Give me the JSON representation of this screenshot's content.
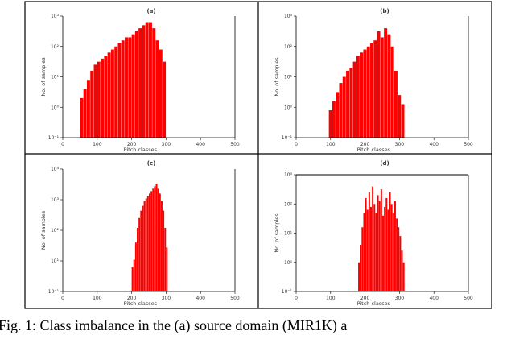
{
  "caption": "Fig. 1: Class imbalance in the (a) source domain (MIR1K) a",
  "colors": {
    "bar": "#ff0000",
    "axis": "#000000",
    "text": "#333333"
  },
  "chart_data": [
    {
      "type": "bar",
      "title": "(a)",
      "xlabel": "Pitch classes",
      "ylabel": "No. of samples",
      "xlim": [
        0,
        500
      ],
      "xticks": [
        0,
        100,
        200,
        300,
        400,
        500
      ],
      "xtick_labels": [
        "0",
        "100",
        "200",
        "300",
        "400",
        "500"
      ],
      "yscale": "log",
      "ylim_exp": [
        -1,
        3
      ],
      "ytick_labels": [
        "10⁻¹",
        "10⁰",
        "10¹",
        "10²",
        "10³"
      ],
      "grid": false,
      "range": [
        50,
        295
      ],
      "bars": [
        {
          "x": 50,
          "v": 0.3
        },
        {
          "x": 60,
          "v": 0.6
        },
        {
          "x": 70,
          "v": 0.9
        },
        {
          "x": 80,
          "v": 1.2
        },
        {
          "x": 90,
          "v": 1.4
        },
        {
          "x": 100,
          "v": 1.5
        },
        {
          "x": 110,
          "v": 1.6
        },
        {
          "x": 120,
          "v": 1.7
        },
        {
          "x": 130,
          "v": 1.8
        },
        {
          "x": 140,
          "v": 1.9
        },
        {
          "x": 150,
          "v": 2.0
        },
        {
          "x": 160,
          "v": 2.1
        },
        {
          "x": 170,
          "v": 2.2
        },
        {
          "x": 180,
          "v": 2.3
        },
        {
          "x": 190,
          "v": 2.3
        },
        {
          "x": 200,
          "v": 2.4
        },
        {
          "x": 210,
          "v": 2.5
        },
        {
          "x": 220,
          "v": 2.6
        },
        {
          "x": 230,
          "v": 2.7
        },
        {
          "x": 240,
          "v": 2.8
        },
        {
          "x": 250,
          "v": 2.8
        },
        {
          "x": 260,
          "v": 2.6
        },
        {
          "x": 270,
          "v": 2.2
        },
        {
          "x": 280,
          "v": 1.9
        },
        {
          "x": 290,
          "v": 1.5
        }
      ]
    },
    {
      "type": "bar",
      "title": "(b)",
      "xlabel": "Pitch classes",
      "ylabel": "No. of samples",
      "xlim": [
        0,
        500
      ],
      "xticks": [
        0,
        100,
        200,
        300,
        400,
        500
      ],
      "xtick_labels": [
        "0",
        "100",
        "200",
        "300",
        "400",
        "500"
      ],
      "yscale": "log",
      "ylim_exp": [
        -1,
        3
      ],
      "ytick_labels": [
        "10⁻¹",
        "10⁰",
        "10¹",
        "10²",
        "10³"
      ],
      "grid": false,
      "range": [
        95,
        305
      ],
      "bars": [
        {
          "x": 95,
          "v": -0.1
        },
        {
          "x": 105,
          "v": 0.2
        },
        {
          "x": 115,
          "v": 0.5
        },
        {
          "x": 125,
          "v": 0.8
        },
        {
          "x": 135,
          "v": 1.0
        },
        {
          "x": 145,
          "v": 1.2
        },
        {
          "x": 155,
          "v": 1.3
        },
        {
          "x": 165,
          "v": 1.5
        },
        {
          "x": 175,
          "v": 1.7
        },
        {
          "x": 185,
          "v": 1.8
        },
        {
          "x": 195,
          "v": 1.9
        },
        {
          "x": 205,
          "v": 2.0
        },
        {
          "x": 215,
          "v": 2.1
        },
        {
          "x": 225,
          "v": 2.2
        },
        {
          "x": 235,
          "v": 2.5
        },
        {
          "x": 245,
          "v": 2.3
        },
        {
          "x": 255,
          "v": 2.6
        },
        {
          "x": 265,
          "v": 2.4
        },
        {
          "x": 275,
          "v": 2.0
        },
        {
          "x": 285,
          "v": 1.2
        },
        {
          "x": 295,
          "v": 0.4
        },
        {
          "x": 305,
          "v": 0.1
        }
      ]
    },
    {
      "type": "bar",
      "title": "(c)",
      "xlabel": "Pitch classes",
      "ylabel": "No. of samples",
      "xlim": [
        0,
        500
      ],
      "xticks": [
        0,
        100,
        200,
        300,
        400,
        500
      ],
      "xtick_labels": [
        "0",
        "100",
        "200",
        "300",
        "400",
        "500"
      ],
      "yscale": "log",
      "ylim_exp": [
        -1,
        4
      ],
      "ytick_labels": [
        "10⁻¹",
        "10¹",
        "10²",
        "10³",
        "10⁴"
      ],
      "grid": false,
      "range": [
        200,
        300
      ],
      "bars": [
        {
          "x": 200,
          "v": 0.0
        },
        {
          "x": 205,
          "v": 0.3
        },
        {
          "x": 210,
          "v": 1.0
        },
        {
          "x": 215,
          "v": 1.6
        },
        {
          "x": 220,
          "v": 2.0
        },
        {
          "x": 225,
          "v": 2.3
        },
        {
          "x": 230,
          "v": 2.5
        },
        {
          "x": 235,
          "v": 2.7
        },
        {
          "x": 240,
          "v": 2.8
        },
        {
          "x": 245,
          "v": 2.9
        },
        {
          "x": 250,
          "v": 3.0
        },
        {
          "x": 255,
          "v": 3.1
        },
        {
          "x": 260,
          "v": 3.2
        },
        {
          "x": 265,
          "v": 3.3
        },
        {
          "x": 270,
          "v": 3.4
        },
        {
          "x": 275,
          "v": 3.2
        },
        {
          "x": 280,
          "v": 3.0
        },
        {
          "x": 285,
          "v": 2.7
        },
        {
          "x": 290,
          "v": 2.3
        },
        {
          "x": 295,
          "v": 1.6
        },
        {
          "x": 300,
          "v": 0.8
        }
      ]
    },
    {
      "type": "bar",
      "title": "(d)",
      "xlabel": "Pitch classes",
      "ylabel": "No. of samples",
      "xlim": [
        0,
        500
      ],
      "xticks": [
        0,
        100,
        200,
        300,
        400,
        500
      ],
      "xtick_labels": [
        "0",
        "100",
        "200",
        "300",
        "400",
        "500"
      ],
      "yscale": "log",
      "ylim_exp": [
        -1,
        3
      ],
      "ytick_labels": [
        "10⁻¹",
        "10⁰",
        "10¹",
        "10²",
        "10³"
      ],
      "grid": false,
      "range": [
        180,
        310
      ],
      "bars": [
        {
          "x": 180,
          "v": 0.0
        },
        {
          "x": 185,
          "v": 0.6
        },
        {
          "x": 190,
          "v": 1.2
        },
        {
          "x": 195,
          "v": 1.7
        },
        {
          "x": 200,
          "v": 2.2
        },
        {
          "x": 205,
          "v": 1.8
        },
        {
          "x": 210,
          "v": 2.4
        },
        {
          "x": 215,
          "v": 1.9
        },
        {
          "x": 220,
          "v": 2.6
        },
        {
          "x": 225,
          "v": 2.0
        },
        {
          "x": 230,
          "v": 1.7
        },
        {
          "x": 235,
          "v": 2.3
        },
        {
          "x": 240,
          "v": 2.1
        },
        {
          "x": 245,
          "v": 2.5
        },
        {
          "x": 250,
          "v": 1.6
        },
        {
          "x": 255,
          "v": 1.9
        },
        {
          "x": 260,
          "v": 2.2
        },
        {
          "x": 265,
          "v": 1.8
        },
        {
          "x": 270,
          "v": 2.4
        },
        {
          "x": 275,
          "v": 2.0
        },
        {
          "x": 280,
          "v": 1.7
        },
        {
          "x": 285,
          "v": 2.1
        },
        {
          "x": 290,
          "v": 1.5
        },
        {
          "x": 295,
          "v": 1.2
        },
        {
          "x": 300,
          "v": 0.9
        },
        {
          "x": 305,
          "v": 0.4
        },
        {
          "x": 310,
          "v": 0.0
        }
      ]
    }
  ]
}
